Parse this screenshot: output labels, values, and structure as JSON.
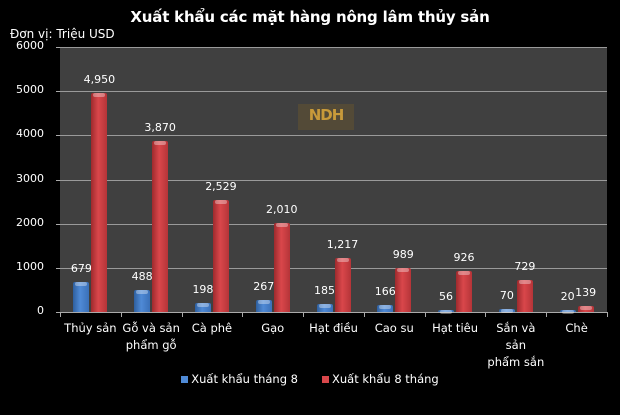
{
  "chart_data": {
    "type": "bar",
    "title": "Xuất khẩu các mặt hàng nông lâm thủy sản",
    "subtitle": "Đơn vị: Triệu USD",
    "xlabel": "",
    "ylabel": "Đơn vị: Triệu USD",
    "ylim": [
      0,
      6000
    ],
    "yticks": [
      "0",
      "1000",
      "2000",
      "3000",
      "4000",
      "5000",
      "6000"
    ],
    "grid": true,
    "legend_position": "bottom",
    "categories": [
      "Thủy sản",
      "Gỗ và sản phẩm gỗ",
      "Cà phê",
      "Gạo",
      "Hạt điều",
      "Cao su",
      "Hạt tiêu",
      "Sắn và sản phẩm sắn",
      "Chè"
    ],
    "series": [
      {
        "name": "Xuất khẩu tháng 8",
        "color": "#4f8ad6",
        "values": [
          679,
          488,
          198,
          267,
          185,
          166,
          56,
          70,
          20
        ],
        "labels": [
          "679",
          "488",
          "198",
          "267",
          "185",
          "166",
          "56",
          "70",
          "20"
        ]
      },
      {
        "name": "Xuất khẩu 8 tháng",
        "color": "#d9474b",
        "values": [
          4950,
          3870,
          2529,
          2010,
          1217,
          989,
          926,
          729,
          139
        ],
        "labels": [
          "4,950",
          "3,870",
          "2,529",
          "2,010",
          "1,217",
          "989",
          "926",
          "729",
          "139"
        ]
      }
    ]
  },
  "ui": {
    "title": "Xuất khẩu các mặt hàng nông lâm thủy sản",
    "unit": "Đơn vị: Triệu USD",
    "watermark": "NDH",
    "xlabels": [
      [
        "Thủy sản"
      ],
      [
        "Gỗ và sản",
        "phẩm gỗ"
      ],
      [
        "Cà phê"
      ],
      [
        "Gạo"
      ],
      [
        "Hạt điều"
      ],
      [
        "Cao su"
      ],
      [
        "Hạt tiêu"
      ],
      [
        "Sắn và sản",
        "phẩm sắn"
      ],
      [
        "Chè"
      ]
    ],
    "legend": [
      "Xuất khẩu tháng 8",
      "Xuất khẩu 8 tháng"
    ]
  }
}
